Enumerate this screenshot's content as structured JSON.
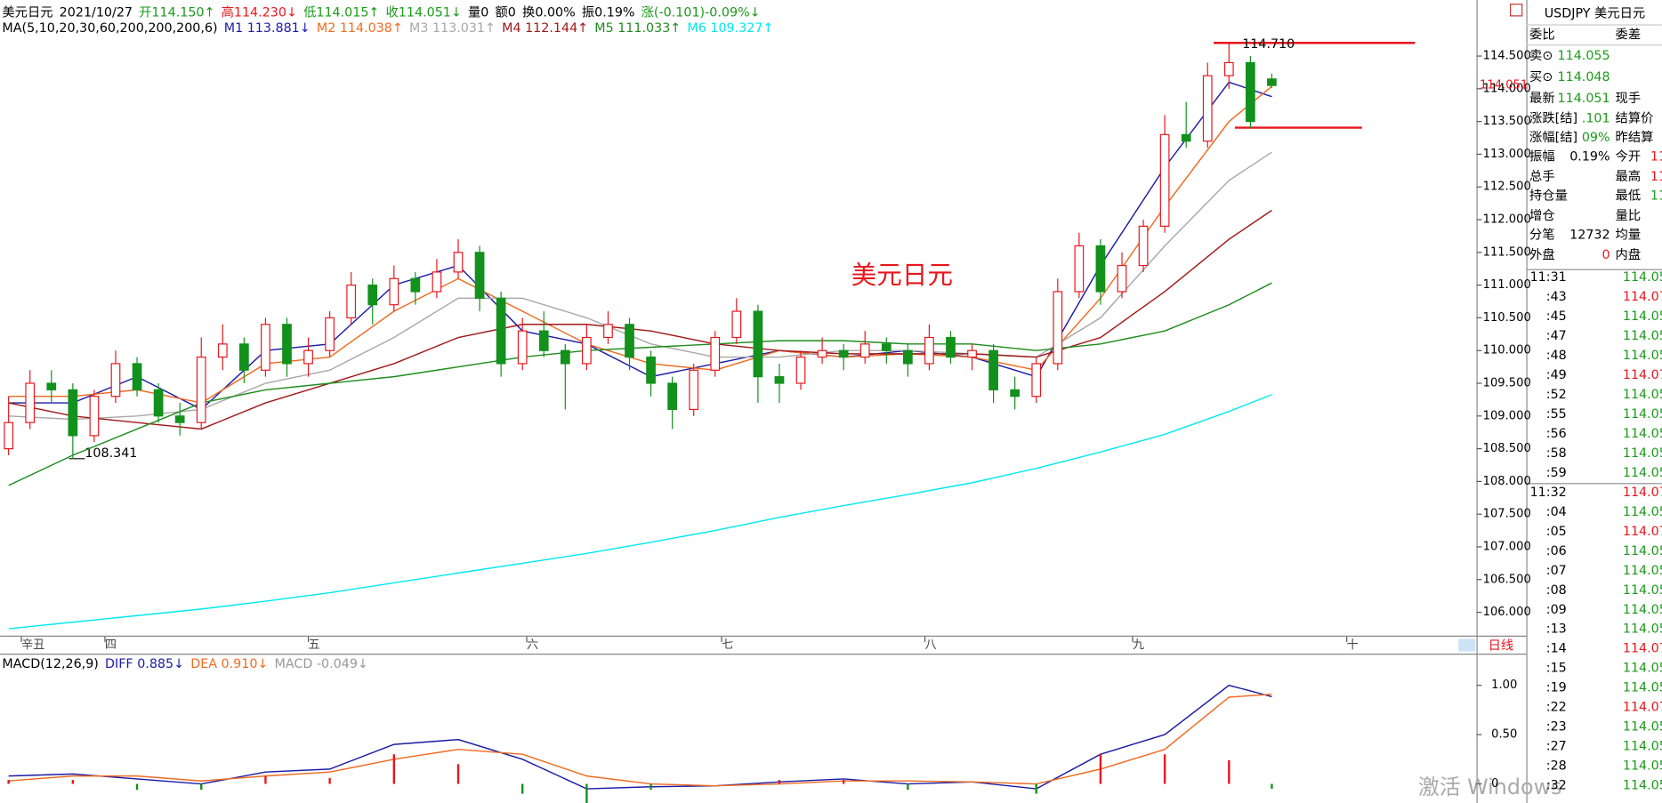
{
  "header": [
    {
      "text": "美元日元",
      "color": "#000"
    },
    {
      "text": "2021/10/27",
      "color": "#000"
    },
    {
      "text": "开114.150↑",
      "color": "#1a9a1a"
    },
    {
      "text": "高114.230↓",
      "color": "#e8161c"
    },
    {
      "text": "低114.015↑",
      "color": "#1a9a1a"
    },
    {
      "text": "收114.051↓",
      "color": "#1a9a1a"
    },
    {
      "text": "量0",
      "color": "#000"
    },
    {
      "text": "额0",
      "color": "#000"
    },
    {
      "text": "换0.00%",
      "color": "#000"
    },
    {
      "text": "振0.19%",
      "color": "#000"
    },
    {
      "text": "涨(-0.101)-0.09%↓",
      "color": "#1a9a1a"
    }
  ],
  "chart_data": [
    {
      "type": "candlestick",
      "legend_title": "MA(5,10,20,30,60,200,200,200,6)",
      "label": "美元日元",
      "last_price_label": "114.051",
      "annotations": [
        "114.710",
        "108.341"
      ],
      "up_color": "#e8161c",
      "down_color": "#12911c",
      "xlim": [
        -0.4,
        68.56
      ],
      "xticks": [
        {
          "value": 0.6,
          "label": "辛丑"
        },
        {
          "value": 4.5,
          "label": "四"
        },
        {
          "value": 14,
          "label": "五"
        },
        {
          "value": 24.2,
          "label": "六"
        },
        {
          "value": 33.3,
          "label": "七"
        },
        {
          "value": 42.8,
          "label": "八"
        },
        {
          "value": 52.5,
          "label": "九"
        },
        {
          "value": 62.5,
          "label": "十"
        }
      ],
      "ylim": [
        105.644,
        114.79
      ],
      "yticks": [
        {
          "value": 106,
          "label": "106.000"
        },
        {
          "value": 106.5,
          "label": "106.500"
        },
        {
          "value": 107,
          "label": "107.000"
        },
        {
          "value": 107.5,
          "label": "107.500"
        },
        {
          "value": 108,
          "label": "108.000"
        },
        {
          "value": 108.5,
          "label": "108.500"
        },
        {
          "value": 109,
          "label": "109.000"
        },
        {
          "value": 109.5,
          "label": "109.500"
        },
        {
          "value": 110,
          "label": "110.000"
        },
        {
          "value": 110.5,
          "label": "110.500"
        },
        {
          "value": 111,
          "label": "111.000"
        },
        {
          "value": 111.5,
          "label": "111.500"
        },
        {
          "value": 112,
          "label": "112.000"
        },
        {
          "value": 112.5,
          "label": "112.500"
        },
        {
          "value": 113,
          "label": "113.000"
        },
        {
          "value": 113.5,
          "label": "113.500"
        },
        {
          "value": 114,
          "label": "114.000"
        },
        {
          "value": 114.5,
          "label": "114.500"
        }
      ],
      "x": [
        0,
        1,
        2,
        3,
        4,
        5,
        6,
        7,
        8,
        9,
        10,
        11,
        12,
        13,
        14,
        15,
        16,
        17,
        18,
        19,
        20,
        21,
        22,
        23,
        24,
        25,
        26,
        27,
        28,
        29,
        30,
        31,
        32,
        33,
        34,
        35,
        36,
        37,
        38,
        39,
        40,
        41,
        42,
        43,
        44,
        45,
        46,
        47,
        48,
        49,
        50,
        51,
        52,
        53,
        54,
        55,
        56,
        57,
        58,
        59
      ],
      "open": [
        108.5,
        108.9,
        109.5,
        109.4,
        108.7,
        109.3,
        109.8,
        109.4,
        109.0,
        108.9,
        109.9,
        110.1,
        109.7,
        110.4,
        109.8,
        110.0,
        110.5,
        111.0,
        110.7,
        111.1,
        110.9,
        111.2,
        111.5,
        110.8,
        109.8,
        110.3,
        110.0,
        109.8,
        110.2,
        110.4,
        109.9,
        109.5,
        109.1,
        109.7,
        110.2,
        110.6,
        109.6,
        109.5,
        109.9,
        110.0,
        109.9,
        110.1,
        110.0,
        109.8,
        110.2,
        109.9,
        110.0,
        109.4,
        109.3,
        109.8,
        110.9,
        111.6,
        110.9,
        111.3,
        111.9,
        113.3,
        113.2,
        114.2,
        114.4,
        114.15
      ],
      "high": [
        109.3,
        109.7,
        109.7,
        109.5,
        109.4,
        110.0,
        109.9,
        109.5,
        109.2,
        110.2,
        110.4,
        110.2,
        110.5,
        110.5,
        110.2,
        110.6,
        111.2,
        111.1,
        111.3,
        111.2,
        111.4,
        111.7,
        111.6,
        110.9,
        110.5,
        110.6,
        110.1,
        110.4,
        110.6,
        110.5,
        110.0,
        109.6,
        109.8,
        110.3,
        110.8,
        110.7,
        109.8,
        110.0,
        110.2,
        110.1,
        110.3,
        110.2,
        110.1,
        110.4,
        110.3,
        110.1,
        110.1,
        109.6,
        109.9,
        111.1,
        111.8,
        111.7,
        111.5,
        112.0,
        113.6,
        113.8,
        114.4,
        114.71,
        114.5,
        114.23
      ],
      "low": [
        108.4,
        108.8,
        109.2,
        108.341,
        108.6,
        109.2,
        109.3,
        108.9,
        108.7,
        108.8,
        109.7,
        109.5,
        109.6,
        109.6,
        109.6,
        109.9,
        110.4,
        110.4,
        110.6,
        110.7,
        110.8,
        111.1,
        110.6,
        109.6,
        109.7,
        109.9,
        109.1,
        109.7,
        110.1,
        109.7,
        109.3,
        108.8,
        109.0,
        109.6,
        110.1,
        109.2,
        109.2,
        109.4,
        109.8,
        109.7,
        109.8,
        109.8,
        109.6,
        109.7,
        109.8,
        109.7,
        109.2,
        109.1,
        109.2,
        109.7,
        110.8,
        110.7,
        110.8,
        111.2,
        111.8,
        113.1,
        113.1,
        114.0,
        113.4,
        114.015
      ],
      "close": [
        108.9,
        109.5,
        109.4,
        108.7,
        109.3,
        109.8,
        109.4,
        109.0,
        108.9,
        109.9,
        110.1,
        109.7,
        110.4,
        109.8,
        110.0,
        110.5,
        111.0,
        110.7,
        111.1,
        110.9,
        111.2,
        111.5,
        110.8,
        109.8,
        110.3,
        110.0,
        109.8,
        110.2,
        110.4,
        109.9,
        109.5,
        109.1,
        109.7,
        110.2,
        110.6,
        109.6,
        109.5,
        109.9,
        110.0,
        109.9,
        110.1,
        110.0,
        109.8,
        110.2,
        109.9,
        110.0,
        109.4,
        109.3,
        109.8,
        110.9,
        111.6,
        110.9,
        111.3,
        111.9,
        113.3,
        113.2,
        114.2,
        114.4,
        113.5,
        114.051
      ],
      "series": [
        {
          "name": "M1 113.881↓",
          "color": "#1a1aa6",
          "x": [
            0,
            3,
            6,
            9,
            12,
            15,
            18,
            21,
            24,
            27,
            30,
            33,
            36,
            39,
            42,
            45,
            48,
            51,
            54,
            57,
            59
          ],
          "values": [
            109.2,
            109.2,
            109.6,
            109.1,
            110.0,
            110.1,
            111.0,
            111.3,
            110.3,
            110.1,
            109.6,
            109.8,
            110.0,
            109.9,
            110.0,
            109.9,
            109.6,
            111.3,
            112.8,
            114.1,
            113.881
          ]
        },
        {
          "name": "M2 114.038↑",
          "color": "#f06a1f",
          "x": [
            0,
            3,
            6,
            9,
            12,
            15,
            18,
            21,
            24,
            27,
            30,
            33,
            36,
            39,
            42,
            45,
            48,
            51,
            54,
            57,
            59
          ],
          "values": [
            109.3,
            109.3,
            109.4,
            109.2,
            109.8,
            109.9,
            110.6,
            111.1,
            110.6,
            110.1,
            109.8,
            109.7,
            110.0,
            109.9,
            109.95,
            109.9,
            109.7,
            110.8,
            112.2,
            113.5,
            114.038
          ]
        },
        {
          "name": "M3 113.031↑",
          "color": "#a8a8a8",
          "x": [
            0,
            3,
            6,
            9,
            12,
            15,
            18,
            21,
            24,
            27,
            30,
            33,
            36,
            39,
            42,
            45,
            48,
            51,
            54,
            57,
            59
          ],
          "values": [
            109.0,
            108.95,
            109.0,
            109.1,
            109.5,
            109.7,
            110.2,
            110.8,
            110.8,
            110.5,
            110.1,
            109.9,
            109.9,
            110.0,
            110.0,
            109.95,
            109.9,
            110.5,
            111.6,
            112.6,
            113.031
          ]
        },
        {
          "name": "M4 112.144↑",
          "color": "#a01818",
          "x": [
            0,
            3,
            6,
            9,
            12,
            15,
            18,
            21,
            24,
            27,
            30,
            33,
            36,
            39,
            42,
            45,
            48,
            51,
            54,
            57,
            59
          ],
          "values": [
            109.2,
            109.0,
            108.9,
            108.8,
            109.2,
            109.5,
            109.8,
            110.2,
            110.4,
            110.4,
            110.3,
            110.1,
            110.0,
            109.95,
            109.95,
            109.95,
            109.9,
            110.2,
            110.9,
            111.7,
            112.144
          ]
        },
        {
          "name": "M5 111.033↑",
          "color": "#1c8c1c",
          "x": [
            0,
            3,
            6,
            9,
            12,
            15,
            18,
            21,
            24,
            27,
            30,
            33,
            36,
            39,
            42,
            45,
            48,
            51,
            54,
            57,
            59
          ],
          "values": [
            107.94,
            108.4,
            108.8,
            109.2,
            109.4,
            109.5,
            109.6,
            109.75,
            109.9,
            110.0,
            110.05,
            110.1,
            110.15,
            110.15,
            110.1,
            110.1,
            110.0,
            110.1,
            110.3,
            110.7,
            111.033
          ]
        },
        {
          "name": "M6 109.327↑",
          "color": "#00e8ee",
          "x": [
            0,
            3,
            6,
            9,
            12,
            15,
            18,
            21,
            24,
            27,
            30,
            33,
            36,
            39,
            42,
            45,
            48,
            51,
            54,
            57,
            59
          ],
          "values": [
            105.75,
            105.85,
            105.95,
            106.05,
            106.17,
            106.3,
            106.45,
            106.6,
            106.75,
            106.9,
            107.07,
            107.25,
            107.45,
            107.63,
            107.8,
            107.98,
            108.2,
            108.45,
            108.72,
            109.07,
            109.327
          ]
        }
      ]
    },
    {
      "type": "macd",
      "legend_title": "MACD(12,26,9)",
      "xlim": [
        -0.4,
        68.56
      ],
      "ylim": [
        -0.194,
        1.3
      ],
      "yticks": [
        0,
        {
          "value": 0.5,
          "label": "0.50"
        },
        {
          "value": 1,
          "label": "1.00"
        }
      ],
      "x": [
        0,
        3,
        6,
        9,
        12,
        15,
        18,
        21,
        24,
        27,
        30,
        33,
        36,
        39,
        42,
        45,
        48,
        51,
        54,
        57,
        59
      ],
      "series": [
        {
          "name": "DIFF 0.885↓",
          "color": "#1a1aa6",
          "values": [
            0.08,
            0.1,
            0.05,
            0.0,
            0.12,
            0.15,
            0.4,
            0.45,
            0.25,
            -0.05,
            -0.03,
            -0.02,
            0.02,
            0.05,
            0.0,
            0.02,
            -0.05,
            0.3,
            0.5,
            1.0,
            0.885
          ]
        },
        {
          "name": "DEA 0.910↓",
          "color": "#f06a1f",
          "values": [
            0.03,
            0.08,
            0.08,
            0.03,
            0.08,
            0.12,
            0.25,
            0.35,
            0.3,
            0.08,
            0.0,
            -0.02,
            0.0,
            0.03,
            0.03,
            0.02,
            0.0,
            0.15,
            0.35,
            0.88,
            0.91
          ]
        },
        {
          "name": "MACD -0.049↓",
          "color": "#999999",
          "bar": true,
          "up_color": "#e8161c",
          "down_color": "#12911c",
          "values": [
            0.04,
            0.04,
            -0.06,
            -0.06,
            0.08,
            0.06,
            0.3,
            0.2,
            -0.1,
            -0.26,
            -0.06,
            0.0,
            0.04,
            0.04,
            -0.06,
            0.0,
            -0.1,
            0.3,
            0.3,
            0.24,
            -0.049
          ]
        }
      ]
    }
  ],
  "period": "日线",
  "quote": {
    "title": "USDJPY 美元日元",
    "rows": [
      {
        "l1": "委比",
        "l2": "委差"
      },
      {
        "l1": "卖⊙",
        "v1": "114.055",
        "c1": "#1a9a1a"
      },
      {
        "l1": "买⊙",
        "v1": "114.048",
        "c1": "#1a9a1a"
      },
      {
        "l1": "最新",
        "v1": "114.051",
        "c1": "#1a9a1a",
        "l2": "现手"
      },
      {
        "l1": "涨跌[结]",
        "v1": ".101",
        "c1": "#1a9a1a",
        "l2": "结算价"
      },
      {
        "l1": "涨幅[结]",
        "v1": "09%",
        "c1": "#1a9a1a",
        "l2": "昨结算"
      },
      {
        "l1": "振幅",
        "v1": "0.19%",
        "c1": "#000",
        "l2": "今开",
        "v2": "11",
        "c2": "#e8161c"
      },
      {
        "l1": "总手",
        "l2": "最高",
        "v2": "11",
        "c2": "#e8161c"
      },
      {
        "l1": "持仓量",
        "l2": "最低",
        "v2": "11",
        "c2": "#1a9a1a"
      },
      {
        "l1": "增仓",
        "l2": "量比"
      },
      {
        "l1": "分笔",
        "v1": "12732",
        "c1": "#000",
        "l2": "均量"
      },
      {
        "l1": "外盘",
        "v1": "0",
        "c1": "#e8161c",
        "l2": "内盘"
      }
    ]
  },
  "trades": [
    {
      "time": "11:31",
      "price": "114.05",
      "color": "#1a9a1a"
    },
    {
      "time": ":43",
      "price": "114.07",
      "color": "#e8161c"
    },
    {
      "time": ":45",
      "price": "114.05",
      "color": "#1a9a1a"
    },
    {
      "time": ":47",
      "price": "114.05",
      "color": "#1a9a1a"
    },
    {
      "time": ":48",
      "price": "114.05",
      "color": "#1a9a1a"
    },
    {
      "time": ":49",
      "price": "114.07",
      "color": "#e8161c"
    },
    {
      "time": ":52",
      "price": "114.05",
      "color": "#1a9a1a"
    },
    {
      "time": ":55",
      "price": "114.05",
      "color": "#1a9a1a"
    },
    {
      "time": ":56",
      "price": "114.05",
      "color": "#1a9a1a"
    },
    {
      "time": ":58",
      "price": "114.05",
      "color": "#1a9a1a"
    },
    {
      "time": ":59",
      "price": "114.05",
      "color": "#1a9a1a"
    },
    {
      "time": "11:32",
      "price": "114.07",
      "color": "#e8161c"
    },
    {
      "time": ":04",
      "price": "114.05",
      "color": "#1a9a1a"
    },
    {
      "time": ":05",
      "price": "114.07",
      "color": "#e8161c"
    },
    {
      "time": ":06",
      "price": "114.05",
      "color": "#1a9a1a"
    },
    {
      "time": ":07",
      "price": "114.05",
      "color": "#1a9a1a"
    },
    {
      "time": ":08",
      "price": "114.05",
      "color": "#1a9a1a"
    },
    {
      "time": ":09",
      "price": "114.05",
      "color": "#1a9a1a"
    },
    {
      "time": ":13",
      "price": "114.05",
      "color": "#1a9a1a"
    },
    {
      "time": ":14",
      "price": "114.07",
      "color": "#e8161c"
    },
    {
      "time": ":15",
      "price": "114.05",
      "color": "#1a9a1a"
    },
    {
      "time": ":19",
      "price": "114.05",
      "color": "#1a9a1a"
    },
    {
      "time": ":22",
      "price": "114.07",
      "color": "#e8161c"
    },
    {
      "time": ":23",
      "price": "114.05",
      "color": "#1a9a1a"
    },
    {
      "time": ":27",
      "price": "114.05",
      "color": "#1a9a1a"
    },
    {
      "time": ":28",
      "price": "114.05",
      "color": "#1a9a1a"
    },
    {
      "time": ":32",
      "price": "114.05",
      "color": "#1a9a1a"
    }
  ],
  "watermark": "激活 Windows"
}
